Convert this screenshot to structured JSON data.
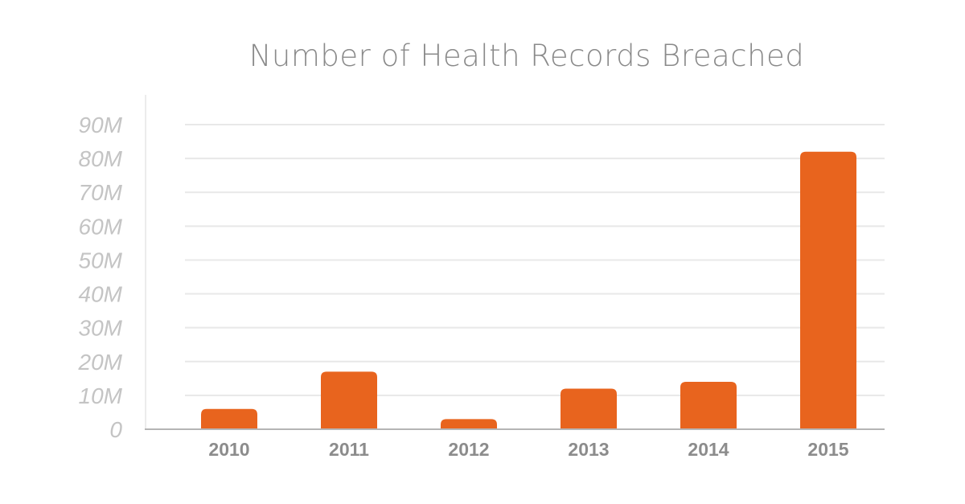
{
  "chart_data": {
    "type": "bar",
    "title": "Number of Health Records Breached",
    "xlabel": "",
    "ylabel": "",
    "categories": [
      "2010",
      "2011",
      "2012",
      "2013",
      "2014",
      "2015"
    ],
    "values": [
      6,
      17,
      3,
      12,
      14,
      82
    ],
    "value_unit": "M",
    "ylim": [
      0,
      90
    ],
    "y_ticks": [
      "0",
      "10M",
      "20M",
      "30M",
      "40M",
      "50M",
      "60M",
      "70M",
      "80M",
      "90M"
    ],
    "y_tick_values": [
      0,
      10,
      20,
      30,
      40,
      50,
      60,
      70,
      80,
      90
    ],
    "grid": true,
    "legend": "none",
    "bar_color": "#e8641e"
  }
}
